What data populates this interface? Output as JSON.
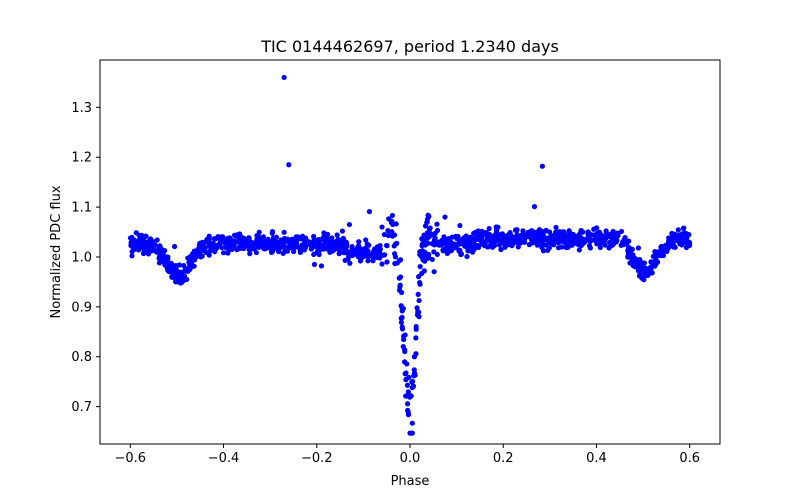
{
  "chart_data": {
    "type": "scatter",
    "title": "TIC 0144462697, period 1.2340 days",
    "xlabel": "Phase",
    "ylabel": "Normalized PDC flux",
    "xlim": [
      -0.665,
      0.665
    ],
    "ylim": [
      0.625,
      1.395
    ],
    "xticks": [
      -0.6,
      -0.4,
      -0.2,
      0.0,
      0.2,
      0.4,
      0.6
    ],
    "xtick_labels": [
      "−0.6",
      "−0.4",
      "−0.2",
      "0.0",
      "0.2",
      "0.4",
      "0.6"
    ],
    "yticks": [
      0.7,
      0.8,
      0.9,
      1.0,
      1.1,
      1.2,
      1.3
    ],
    "ytick_labels": [
      "0.7",
      "0.8",
      "0.9",
      "1.0",
      "1.1",
      "1.2",
      "1.3"
    ],
    "grid": false,
    "marker_color": "#0000ff",
    "series": [
      {
        "name": "PDC flux",
        "outliers": [
          [
            -0.27,
            1.36
          ],
          [
            -0.26,
            1.185
          ],
          [
            0.284,
            1.182
          ],
          [
            0.267,
            1.101
          ],
          [
            -0.087,
            1.091
          ],
          [
            0.075,
            1.08
          ],
          [
            0.107,
            1.063
          ],
          [
            -0.13,
            1.065
          ],
          [
            -0.145,
            1.052
          ],
          [
            -0.505,
            1.021
          ],
          [
            0.49,
            1.018
          ],
          [
            -0.205,
            0.985
          ],
          [
            -0.19,
            0.982
          ],
          [
            -0.06,
            1.06
          ],
          [
            -0.055,
            1.045
          ]
        ]
      }
    ]
  }
}
